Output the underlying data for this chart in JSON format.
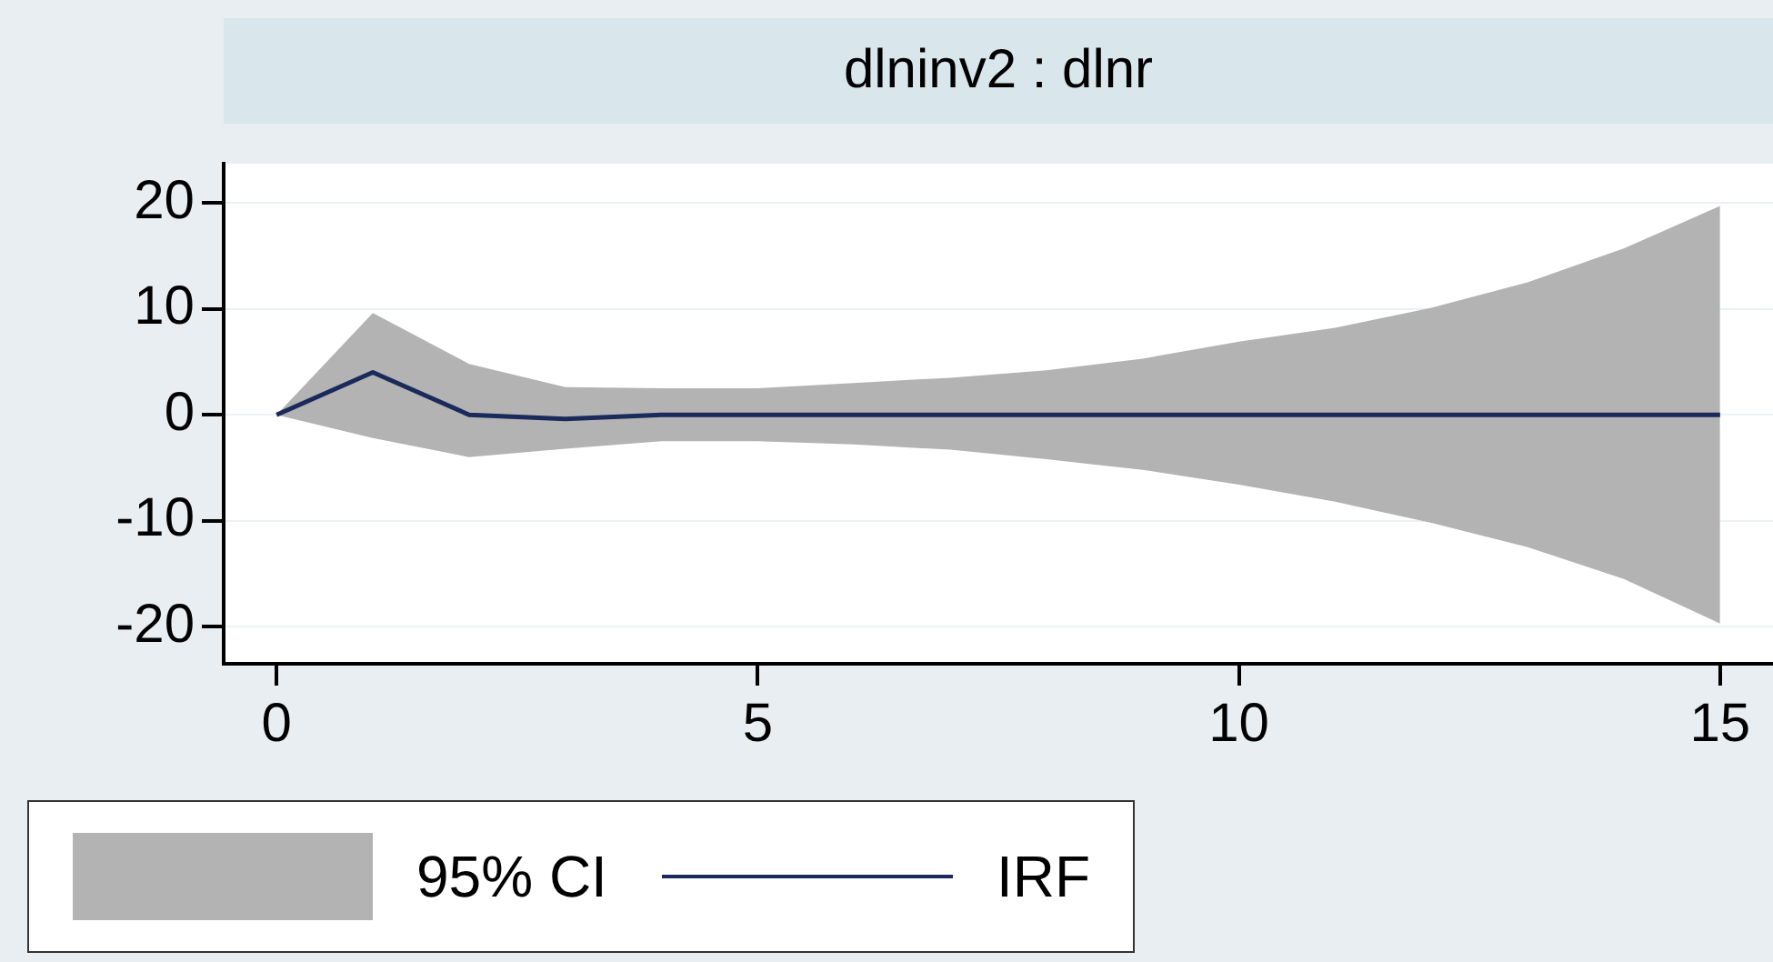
{
  "chart_data": {
    "type": "line",
    "title": "dlninv2 : dlnr",
    "x": [
      0,
      1,
      2,
      3,
      4,
      5,
      6,
      7,
      8,
      9,
      10,
      11,
      12,
      13,
      14,
      15
    ],
    "series": [
      {
        "name": "IRF",
        "color": "#1a2a5a",
        "values": [
          0,
          4,
          0,
          -0.4,
          0,
          0,
          0,
          0,
          0,
          0,
          0,
          0,
          0,
          0,
          0,
          0
        ],
        "lower": [
          0,
          -2.2,
          -4,
          -3.2,
          -2.5,
          -2.5,
          -2.8,
          -3.3,
          -4.2,
          -5.2,
          -6.6,
          -8.2,
          -10.2,
          -12.5,
          -15.5,
          -19.7
        ],
        "upper": [
          0,
          9.6,
          4.8,
          2.6,
          2.5,
          2.5,
          3,
          3.5,
          4.2,
          5.3,
          6.9,
          8.2,
          10.1,
          12.5,
          15.7,
          19.7
        ]
      }
    ],
    "annotations": [
      "95% CI"
    ],
    "xlim": [
      -0.55,
      15.55
    ],
    "xticks": [
      0,
      5,
      10,
      15
    ],
    "ylim": [
      -23.5,
      23.7
    ],
    "yticks": [
      -20,
      -10,
      0,
      10,
      20
    ],
    "grid": "y",
    "legend": "bottom left",
    "marker": "none",
    "line_style": "solid"
  }
}
